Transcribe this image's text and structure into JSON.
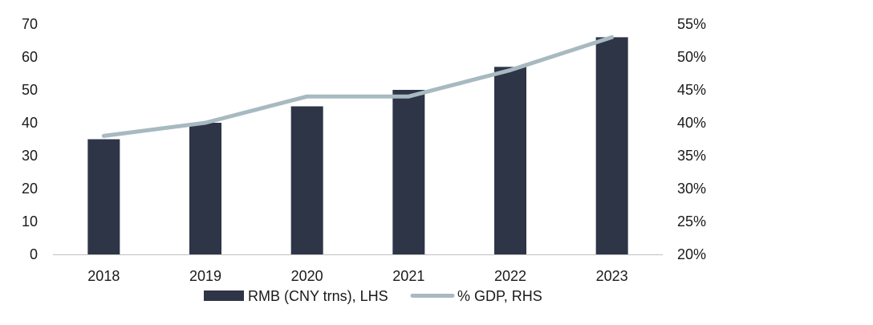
{
  "chart_data": {
    "type": "bar",
    "categories": [
      "2018",
      "2019",
      "2020",
      "2021",
      "2022",
      "2023"
    ],
    "series": [
      {
        "name": "RMB (CNY trns), LHS",
        "type": "bar",
        "axis": "left",
        "color": "#2e3547",
        "values": [
          35,
          40,
          45,
          50,
          57,
          66
        ]
      },
      {
        "name": "% GDP, RHS",
        "type": "line",
        "axis": "right",
        "color": "#a7b9c1",
        "values": [
          38,
          40,
          44,
          44,
          48,
          53
        ]
      }
    ],
    "left_axis": {
      "ylim": [
        0,
        70
      ],
      "ticks": [
        0,
        10,
        20,
        30,
        40,
        50,
        60,
        70
      ],
      "tick_labels": [
        "0",
        "10",
        "20",
        "30",
        "40",
        "50",
        "60",
        "70"
      ]
    },
    "right_axis": {
      "ylim": [
        20,
        55
      ],
      "ticks": [
        20,
        25,
        30,
        35,
        40,
        45,
        50,
        55
      ],
      "tick_labels": [
        "20%",
        "25%",
        "30%",
        "35%",
        "40%",
        "45%",
        "50%",
        "55%"
      ]
    },
    "grid": false,
    "legend_position": "bottom"
  }
}
